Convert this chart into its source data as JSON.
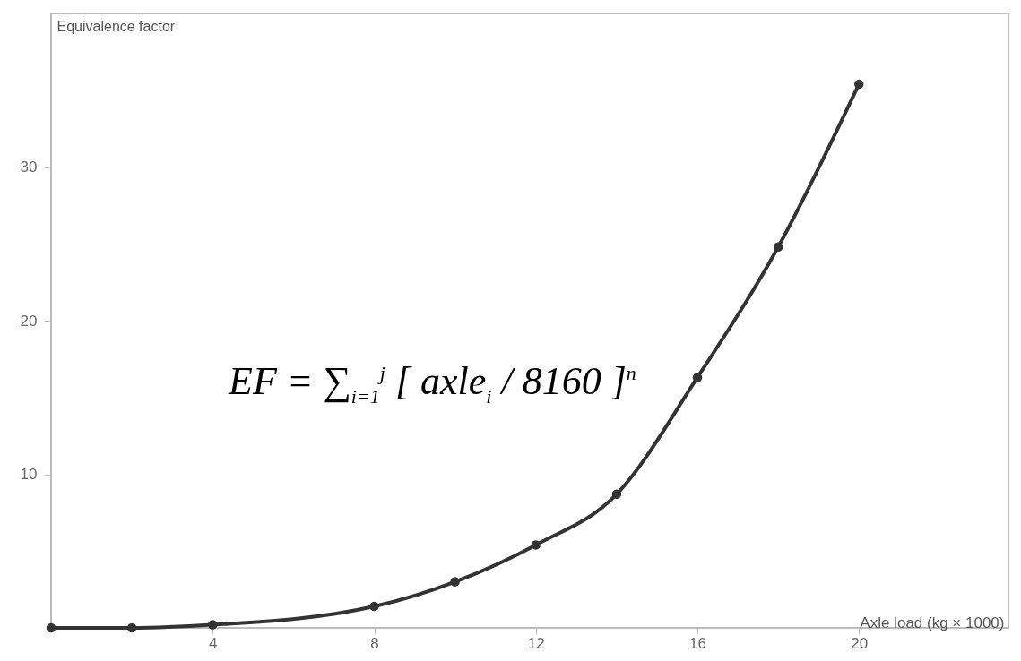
{
  "chart_data": {
    "type": "line",
    "xlabel": "Axle load (kg × 1000)",
    "ylabel": "Equivalence factor",
    "x": [
      0,
      2,
      4,
      8,
      10,
      12,
      14,
      16,
      18,
      20
    ],
    "series": [
      {
        "color": "#333333",
        "values": [
          0,
          0,
          0.2,
          1.4,
          3.0,
          5.4,
          8.7,
          16.3,
          24.8,
          35.4
        ]
      }
    ],
    "xlim": [
      0,
      23.7
    ],
    "xticks": [
      4,
      8,
      12,
      16,
      20
    ],
    "ylim": [
      0,
      40
    ],
    "yticks": [
      10,
      20,
      30
    ],
    "marker": "circle",
    "line_style": "solid",
    "grid": false,
    "annotations": [
      "EF = ∑$_{i=1}$$^{j}$ [ axle$_{i}$ / 8160 ]$^{n}$"
    ]
  }
}
